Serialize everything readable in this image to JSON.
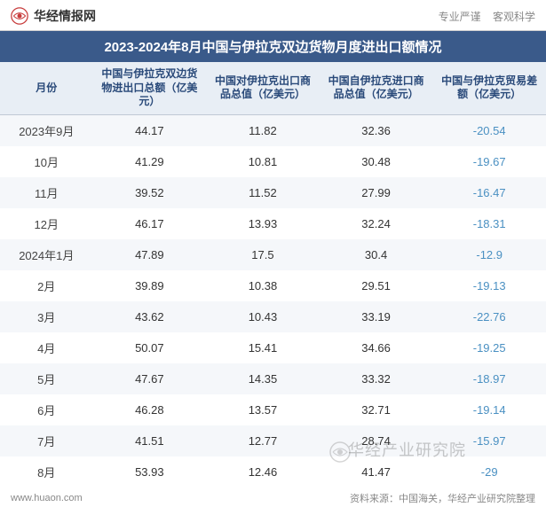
{
  "header": {
    "brand": "华经情报网",
    "tagline_left": "专业严谨",
    "tagline_right": "客观科学"
  },
  "title": "2023-2024年8月中国与伊拉克双边货物月度进出口额情况",
  "table": {
    "columns": [
      "月份",
      "中国与伊拉克双边货物进出口总额（亿美元）",
      "中国对伊拉克出口商品总值（亿美元）",
      "中国自伊拉克进口商品总值（亿美元）",
      "中国与伊拉克贸易差额（亿美元）"
    ],
    "rows": [
      {
        "month": "2023年9月",
        "total": "44.17",
        "export": "11.82",
        "import": "32.36",
        "balance": "-20.54"
      },
      {
        "month": "10月",
        "total": "41.29",
        "export": "10.81",
        "import": "30.48",
        "balance": "-19.67"
      },
      {
        "month": "11月",
        "total": "39.52",
        "export": "11.52",
        "import": "27.99",
        "balance": "-16.47"
      },
      {
        "month": "12月",
        "total": "46.17",
        "export": "13.93",
        "import": "32.24",
        "balance": "-18.31"
      },
      {
        "month": "2024年1月",
        "total": "47.89",
        "export": "17.5",
        "import": "30.4",
        "balance": "-12.9"
      },
      {
        "month": "2月",
        "total": "39.89",
        "export": "10.38",
        "import": "29.51",
        "balance": "-19.13"
      },
      {
        "month": "3月",
        "total": "43.62",
        "export": "10.43",
        "import": "33.19",
        "balance": "-22.76"
      },
      {
        "month": "4月",
        "total": "50.07",
        "export": "15.41",
        "import": "34.66",
        "balance": "-19.25"
      },
      {
        "month": "5月",
        "total": "47.67",
        "export": "14.35",
        "import": "33.32",
        "balance": "-18.97"
      },
      {
        "month": "6月",
        "total": "46.28",
        "export": "13.57",
        "import": "32.71",
        "balance": "-19.14"
      },
      {
        "month": "7月",
        "total": "41.51",
        "export": "12.77",
        "import": "28.74",
        "balance": "-15.97"
      },
      {
        "month": "8月",
        "total": "53.93",
        "export": "12.46",
        "import": "41.47",
        "balance": "-29"
      }
    ],
    "header_bg": "#e8eef5",
    "header_color": "#2a4a7a",
    "row_odd_bg": "#f5f7fa",
    "row_even_bg": "#ffffff",
    "negative_color": "#4a90c2",
    "title_bg": "#3a5a8a"
  },
  "footer": {
    "url": "www.huaon.com",
    "source": "资料来源：中国海关，华经产业研究院整理"
  },
  "watermark": "华经产业研究院"
}
